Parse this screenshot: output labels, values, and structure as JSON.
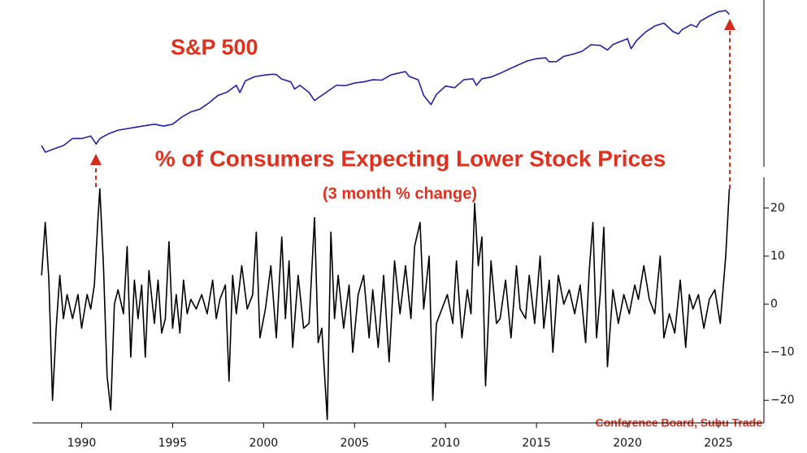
{
  "chart_data": [
    {
      "type": "line",
      "title": "S&P 500",
      "log_scale": true,
      "color": "#2222aa",
      "xlim": [
        1987.3,
        2027.5
      ],
      "ylim": [
        180,
        7740
      ],
      "x": [
        1987.8,
        1988.0,
        1988.5,
        1989.0,
        1989.5,
        1990.0,
        1990.5,
        1990.8,
        1991.0,
        1991.5,
        1992.0,
        1993.0,
        1994.0,
        1994.5,
        1995.0,
        1995.5,
        1996.0,
        1996.5,
        1997.0,
        1997.5,
        1998.0,
        1998.5,
        1998.7,
        1999.0,
        1999.5,
        2000.0,
        2000.5,
        2000.7,
        2001.0,
        2001.5,
        2001.7,
        2002.0,
        2002.5,
        2002.8,
        2003.0,
        2003.5,
        2004.0,
        2004.5,
        2005.0,
        2005.5,
        2006.0,
        2006.5,
        2007.0,
        2007.5,
        2007.8,
        2008.0,
        2008.5,
        2008.8,
        2009.2,
        2009.5,
        2010.0,
        2010.5,
        2011.0,
        2011.5,
        2011.7,
        2012.0,
        2012.5,
        2013.0,
        2013.5,
        2014.0,
        2014.5,
        2015.0,
        2015.5,
        2015.7,
        2016.1,
        2016.5,
        2017.0,
        2017.5,
        2018.0,
        2018.5,
        2018.9,
        2019.2,
        2019.5,
        2020.0,
        2020.2,
        2020.5,
        2021.0,
        2021.5,
        2022.0,
        2022.5,
        2022.8,
        2023.0,
        2023.5,
        2023.8,
        2024.0,
        2024.5,
        2025.0,
        2025.4,
        2025.6
      ],
      "values": [
        290,
        250,
        270,
        290,
        340,
        340,
        360,
        300,
        340,
        380,
        410,
        440,
        470,
        450,
        470,
        550,
        620,
        660,
        760,
        900,
        970,
        1130,
        960,
        1250,
        1370,
        1420,
        1450,
        1440,
        1300,
        1220,
        1040,
        1130,
        960,
        800,
        850,
        980,
        1130,
        1120,
        1190,
        1220,
        1280,
        1270,
        1430,
        1500,
        1540,
        1380,
        1280,
        900,
        730,
        920,
        1110,
        1070,
        1280,
        1310,
        1130,
        1310,
        1360,
        1480,
        1630,
        1790,
        1960,
        2060,
        2100,
        1920,
        1930,
        2170,
        2280,
        2430,
        2820,
        2780,
        2500,
        2830,
        2980,
        3230,
        2580,
        3100,
        3760,
        4300,
        4600,
        3800,
        3600,
        3970,
        4450,
        4200,
        4800,
        5400,
        5950,
        6100,
        5600
      ]
    },
    {
      "type": "line",
      "title": "% of Consumers Expecting Lower Stock Prices",
      "subtitle": "(3 month % change)",
      "source": "Conference Board, Subu Trade",
      "color": "#000000",
      "xlim": [
        1987.3,
        2027.5
      ],
      "ylim": [
        -24.7,
        26.4
      ],
      "xticks": [
        1990,
        1995,
        2000,
        2005,
        2010,
        2015,
        2020,
        2025
      ],
      "yticks": [
        {
          "value": -20,
          "label": "−20"
        },
        {
          "value": -10,
          "label": "−10"
        },
        0,
        10,
        20
      ],
      "x": [
        1987.8,
        1988.0,
        1988.2,
        1988.4,
        1988.6,
        1988.8,
        1989.0,
        1989.2,
        1989.5,
        1989.8,
        1990.0,
        1990.3,
        1990.5,
        1990.7,
        1990.9,
        1991.0,
        1991.2,
        1991.4,
        1991.6,
        1991.8,
        1992.0,
        1992.3,
        1992.5,
        1992.7,
        1992.9,
        1993.1,
        1993.3,
        1993.5,
        1993.7,
        1994.0,
        1994.2,
        1994.4,
        1994.6,
        1994.8,
        1995.0,
        1995.2,
        1995.4,
        1995.6,
        1995.8,
        1996.0,
        1996.3,
        1996.6,
        1996.9,
        1997.2,
        1997.4,
        1997.6,
        1997.9,
        1998.1,
        1998.3,
        1998.5,
        1998.8,
        1999.1,
        1999.4,
        1999.6,
        1999.8,
        2000.1,
        2000.4,
        2000.7,
        2001.0,
        2001.2,
        2001.4,
        2001.6,
        2001.9,
        2002.2,
        2002.5,
        2002.8,
        2003.0,
        2003.2,
        2003.5,
        2003.7,
        2003.9,
        2004.1,
        2004.4,
        2004.7,
        2004.9,
        2005.2,
        2005.5,
        2005.8,
        2006.0,
        2006.3,
        2006.6,
        2006.9,
        2007.2,
        2007.5,
        2007.8,
        2008.1,
        2008.3,
        2008.6,
        2008.8,
        2009.1,
        2009.3,
        2009.5,
        2009.8,
        2010.1,
        2010.4,
        2010.6,
        2010.9,
        2011.2,
        2011.4,
        2011.6,
        2011.8,
        2012.0,
        2012.2,
        2012.5,
        2012.8,
        2013.0,
        2013.3,
        2013.6,
        2013.9,
        2014.1,
        2014.4,
        2014.6,
        2014.9,
        2015.2,
        2015.4,
        2015.7,
        2015.9,
        2016.2,
        2016.5,
        2016.8,
        2017.1,
        2017.4,
        2017.7,
        2017.9,
        2018.1,
        2018.3,
        2018.5,
        2018.7,
        2018.9,
        2019.2,
        2019.5,
        2019.8,
        2020.1,
        2020.4,
        2020.6,
        2020.9,
        2021.2,
        2021.5,
        2021.8,
        2022.0,
        2022.3,
        2022.6,
        2022.9,
        2023.2,
        2023.4,
        2023.6,
        2023.9,
        2024.2,
        2024.5,
        2024.8,
        2025.1,
        2025.4,
        2025.6
      ],
      "values": [
        6,
        17,
        5,
        -20,
        -5,
        6,
        -3,
        2,
        -3,
        2,
        -5,
        2,
        -1,
        4,
        18,
        24,
        8,
        -15,
        -22,
        0,
        3,
        -2,
        12,
        -11,
        5,
        -3,
        4,
        -11,
        7,
        -4,
        5,
        -6,
        -3,
        13,
        -5,
        2,
        -6,
        5,
        -2,
        1,
        -1,
        2,
        -2,
        5,
        -3,
        1,
        4,
        -16,
        6,
        -2,
        8,
        -1,
        2,
        15,
        -7,
        -1,
        8,
        -7,
        14,
        -3,
        9,
        -9,
        6,
        -5,
        -4,
        18,
        -8,
        -5,
        -24,
        15,
        -3,
        6,
        -5,
        4,
        -10,
        2,
        6,
        -7,
        3,
        -9,
        6,
        -12,
        9,
        -2,
        8,
        -3,
        12,
        17,
        -1,
        10,
        -20,
        -4,
        -1,
        2,
        -4,
        9,
        -7,
        3,
        -2,
        21,
        8,
        14,
        -17,
        9,
        -4,
        -3,
        5,
        -7,
        8,
        -1,
        -3,
        6,
        -4,
        10,
        -5,
        5,
        -10,
        6,
        0,
        3,
        -2,
        4,
        -8,
        7,
        17,
        -7,
        2,
        16,
        -13,
        3,
        -4,
        2,
        -2,
        4,
        1,
        8,
        1,
        -2,
        10,
        -7,
        -2,
        -6,
        5,
        -9,
        2,
        -1,
        2,
        -5,
        1,
        3,
        -4,
        10,
        24
      ]
    }
  ]
}
